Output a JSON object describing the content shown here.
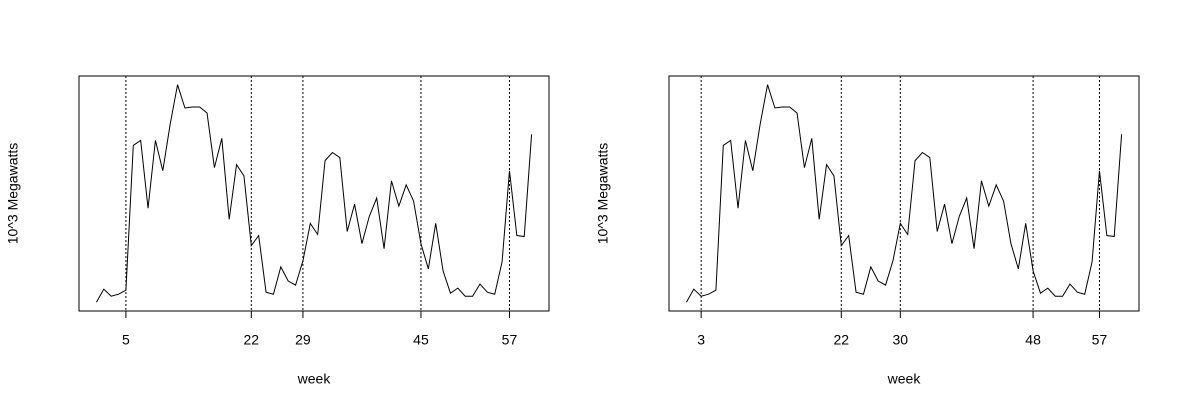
{
  "chart_data": [
    {
      "type": "line",
      "xlabel": "week",
      "ylabel": "10^3 Megawatts",
      "x": [
        1,
        2,
        3,
        4,
        5,
        6,
        7,
        8,
        9,
        10,
        11,
        12,
        13,
        14,
        15,
        16,
        17,
        18,
        19,
        20,
        21,
        22,
        23,
        24,
        25,
        26,
        27,
        28,
        29,
        30,
        31,
        32,
        33,
        34,
        35,
        36,
        37,
        38,
        39,
        40,
        41,
        42,
        43,
        44,
        45,
        46,
        47,
        48,
        49,
        50,
        51,
        52,
        53,
        54,
        55,
        56,
        57,
        58,
        59,
        60
      ],
      "series": [
        {
          "color": "#000000",
          "values": [
            8,
            21,
            14,
            16,
            20,
            163,
            168,
            101,
            168,
            138,
            184,
            223,
            200,
            201,
            201,
            195,
            141,
            170,
            90,
            144,
            133,
            64,
            74,
            18,
            16,
            43,
            29,
            25,
            49,
            86,
            75,
            148,
            156,
            151,
            78,
            105,
            66,
            93,
            111,
            61,
            128,
            103,
            124,
            108,
            66,
            41,
            86,
            39,
            17,
            22,
            14,
            14,
            26,
            18,
            16,
            48,
            138,
            74,
            73,
            174
          ]
        }
      ],
      "xlim": [
        -1.36,
        62.36
      ],
      "ylim": [
        -0.6,
        231.6
      ],
      "xticks": [
        5,
        22,
        29,
        45,
        57
      ]
    },
    {
      "type": "line",
      "xlabel": "week",
      "ylabel": "10^3 Megawatts",
      "x": [
        1,
        2,
        3,
        4,
        5,
        6,
        7,
        8,
        9,
        10,
        11,
        12,
        13,
        14,
        15,
        16,
        17,
        18,
        19,
        20,
        21,
        22,
        23,
        24,
        25,
        26,
        27,
        28,
        29,
        30,
        31,
        32,
        33,
        34,
        35,
        36,
        37,
        38,
        39,
        40,
        41,
        42,
        43,
        44,
        45,
        46,
        47,
        48,
        49,
        50,
        51,
        52,
        53,
        54,
        55,
        56,
        57,
        58,
        59,
        60
      ],
      "series": [
        {
          "color": "#000000",
          "values": [
            8,
            21,
            14,
            16,
            20,
            163,
            168,
            101,
            168,
            138,
            184,
            223,
            200,
            201,
            201,
            195,
            141,
            170,
            90,
            144,
            133,
            64,
            74,
            18,
            16,
            43,
            29,
            25,
            49,
            86,
            75,
            148,
            156,
            151,
            78,
            105,
            66,
            93,
            111,
            61,
            128,
            103,
            124,
            108,
            66,
            41,
            86,
            39,
            17,
            22,
            14,
            14,
            26,
            18,
            16,
            48,
            138,
            74,
            73,
            174
          ]
        }
      ],
      "xlim": [
        -1.36,
        62.36
      ],
      "ylim": [
        -0.6,
        231.6
      ],
      "xticks": [
        3,
        22,
        30,
        48,
        57
      ]
    }
  ]
}
